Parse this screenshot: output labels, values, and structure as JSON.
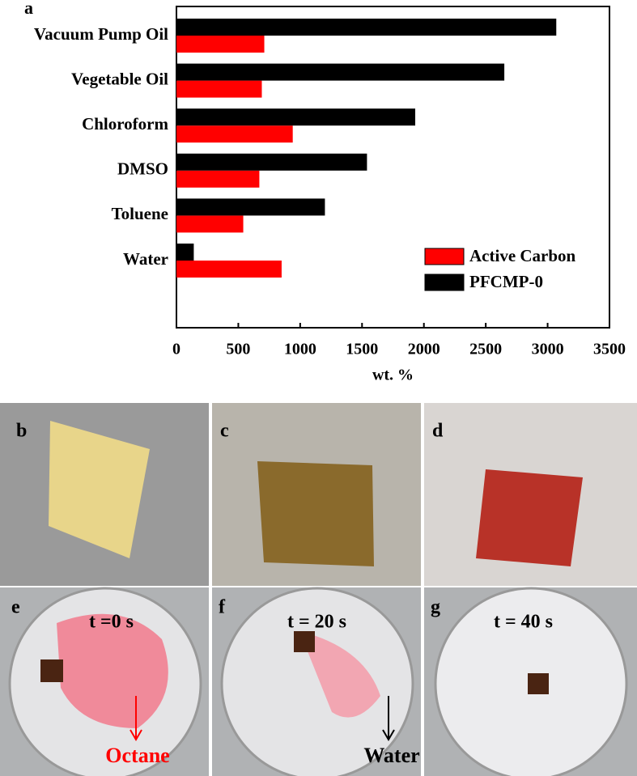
{
  "chart_data": {
    "type": "barh",
    "panel_label": "a",
    "categories": [
      "Vacuum Pump Oil",
      "Vegetable Oil",
      "Chloroform",
      "DMSO",
      "Toluene",
      "Water"
    ],
    "series": [
      {
        "name": "Active Carbon",
        "color": "#ff0000",
        "values": [
          710,
          690,
          940,
          670,
          540,
          850
        ]
      },
      {
        "name": "PFCMP-0",
        "color": "#000000",
        "values": [
          3070,
          2650,
          1930,
          1540,
          1200,
          140
        ]
      }
    ],
    "xlabel": "wt. %",
    "xlim": [
      0,
      3500
    ],
    "xticks": [
      0,
      500,
      1000,
      1500,
      2000,
      2500,
      3000,
      3500
    ],
    "legend": "lower right"
  },
  "panels": [
    {
      "label": "b"
    },
    {
      "label": "c"
    },
    {
      "label": "d"
    },
    {
      "label": "e",
      "time": "t =0 s",
      "note": "Octane"
    },
    {
      "label": "f",
      "time": "t =  20 s",
      "note": "Water"
    },
    {
      "label": "g",
      "time": "t = 40 s"
    }
  ]
}
